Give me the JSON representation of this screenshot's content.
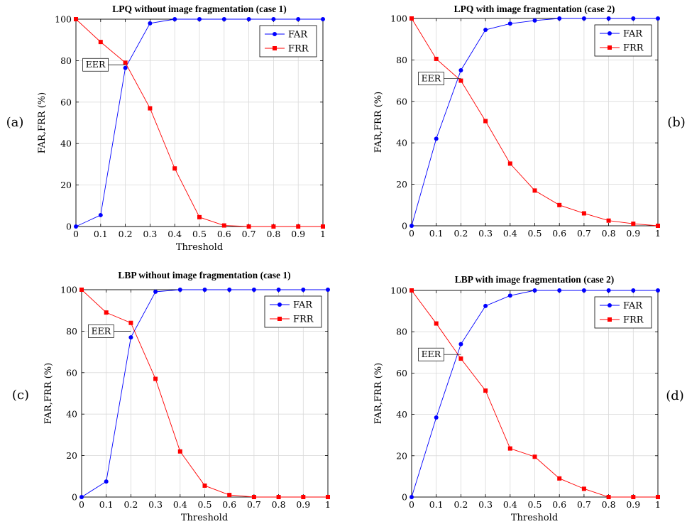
{
  "chart_data": [
    {
      "type": "line",
      "panel_letter": "(a)",
      "title": "LPQ without image fragmentation (case 1)",
      "xlabel": "Threshold",
      "ylabel": "FAR,FRR (%)",
      "xlim": [
        0,
        1
      ],
      "ylim": [
        0,
        100
      ],
      "x": [
        0,
        0.1,
        0.2,
        0.3,
        0.4,
        0.5,
        0.6,
        0.7,
        0.8,
        0.9,
        1
      ],
      "x_tick_labels": [
        "0",
        "0.1",
        "0.2",
        "0.3",
        "0.4",
        "0.5",
        "0.6",
        "0.7",
        "0.8",
        "0.9",
        "1"
      ],
      "y_ticks": [
        0,
        20,
        40,
        60,
        80,
        100
      ],
      "grid": true,
      "legend_position": "top-right",
      "series": [
        {
          "name": "FAR",
          "color": "#0000ff",
          "marker": "circle",
          "values": [
            0,
            5.5,
            76.5,
            98,
            100,
            100,
            100,
            100,
            100,
            100,
            100
          ]
        },
        {
          "name": "FRR",
          "color": "#ff0000",
          "marker": "square",
          "values": [
            100,
            89,
            79,
            57,
            28,
            4.5,
            0.5,
            0,
            0,
            0,
            0
          ]
        }
      ],
      "annotation": {
        "text": "EER",
        "x": 0.2,
        "y": 78
      }
    },
    {
      "type": "line",
      "panel_letter": "(b)",
      "title": "LPQ with image fragmentation (case 2)",
      "xlabel": "",
      "ylabel": "FAR,FRR (%)",
      "xlim": [
        0,
        1
      ],
      "ylim": [
        0,
        100
      ],
      "x": [
        0,
        0.1,
        0.2,
        0.3,
        0.4,
        0.5,
        0.6,
        0.7,
        0.8,
        0.9,
        1
      ],
      "x_tick_labels": [
        "0",
        "0.1",
        "0.2",
        "0.3",
        "0.4",
        "0.5",
        "0.6",
        "0.7",
        "0.8",
        "0.9",
        "1"
      ],
      "y_ticks": [
        0,
        20,
        40,
        60,
        80,
        100
      ],
      "grid": true,
      "legend_position": "top-right",
      "series": [
        {
          "name": "FAR",
          "color": "#0000ff",
          "marker": "circle",
          "values": [
            0,
            42,
            75,
            94.5,
            97.5,
            99,
            100,
            100,
            100,
            100,
            100
          ]
        },
        {
          "name": "FRR",
          "color": "#ff0000",
          "marker": "square",
          "values": [
            100,
            80.5,
            70,
            50.5,
            30,
            17,
            10,
            6,
            2.5,
            1,
            0
          ]
        }
      ],
      "annotation": {
        "text": "EER",
        "x": 0.2,
        "y": 71
      }
    },
    {
      "type": "line",
      "panel_letter": "(c)",
      "title": "LBP without image fragmentation (case 1)",
      "xlabel": "Threshold",
      "ylabel": "FAR,FRR (%)",
      "xlim": [
        0,
        1
      ],
      "ylim": [
        0,
        100
      ],
      "x": [
        0,
        0.1,
        0.2,
        0.3,
        0.4,
        0.5,
        0.6,
        0.7,
        0.8,
        0.9,
        1
      ],
      "x_tick_labels": [
        "0",
        "0.1",
        "0.2",
        "0.3",
        "0.4",
        "0.5",
        "0.6",
        "0.7",
        "0.8",
        "0.9",
        "1"
      ],
      "y_ticks": [
        0,
        20,
        40,
        60,
        80,
        100
      ],
      "grid": true,
      "legend_position": "top-right",
      "series": [
        {
          "name": "FAR",
          "color": "#0000ff",
          "marker": "circle",
          "values": [
            0,
            7.5,
            77,
            99,
            100,
            100,
            100,
            100,
            100,
            100,
            100
          ]
        },
        {
          "name": "FRR",
          "color": "#ff0000",
          "marker": "square",
          "values": [
            100,
            89,
            84,
            57,
            22,
            5.5,
            1,
            0,
            0,
            0,
            0
          ]
        }
      ],
      "annotation": {
        "text": "EER",
        "x": 0.2,
        "y": 80
      }
    },
    {
      "type": "line",
      "panel_letter": "(d)",
      "title": "LBP with image fragmentation (case 2)",
      "xlabel": "Threshold",
      "ylabel": "FAR,FRR (%)",
      "xlim": [
        0,
        1
      ],
      "ylim": [
        0,
        100
      ],
      "x": [
        0,
        0.1,
        0.2,
        0.3,
        0.4,
        0.5,
        0.6,
        0.7,
        0.8,
        0.9,
        1
      ],
      "x_tick_labels": [
        "0",
        "0.1",
        "0.2",
        "0.3",
        "0.4",
        "0.5",
        "0.6",
        "0.7",
        "0.8",
        "0.9",
        "1"
      ],
      "y_ticks": [
        0,
        20,
        40,
        60,
        80,
        100
      ],
      "grid": true,
      "legend_position": "top-right",
      "series": [
        {
          "name": "FAR",
          "color": "#0000ff",
          "marker": "circle",
          "values": [
            0,
            38.5,
            74,
            92.5,
            97.5,
            100,
            100,
            100,
            100,
            100,
            100
          ]
        },
        {
          "name": "FRR",
          "color": "#ff0000",
          "marker": "square",
          "values": [
            100,
            84,
            67,
            51.5,
            23.5,
            19.5,
            9,
            4,
            0,
            0,
            0
          ]
        }
      ],
      "annotation": {
        "text": "EER",
        "x": 0.2,
        "y": 69
      }
    }
  ]
}
